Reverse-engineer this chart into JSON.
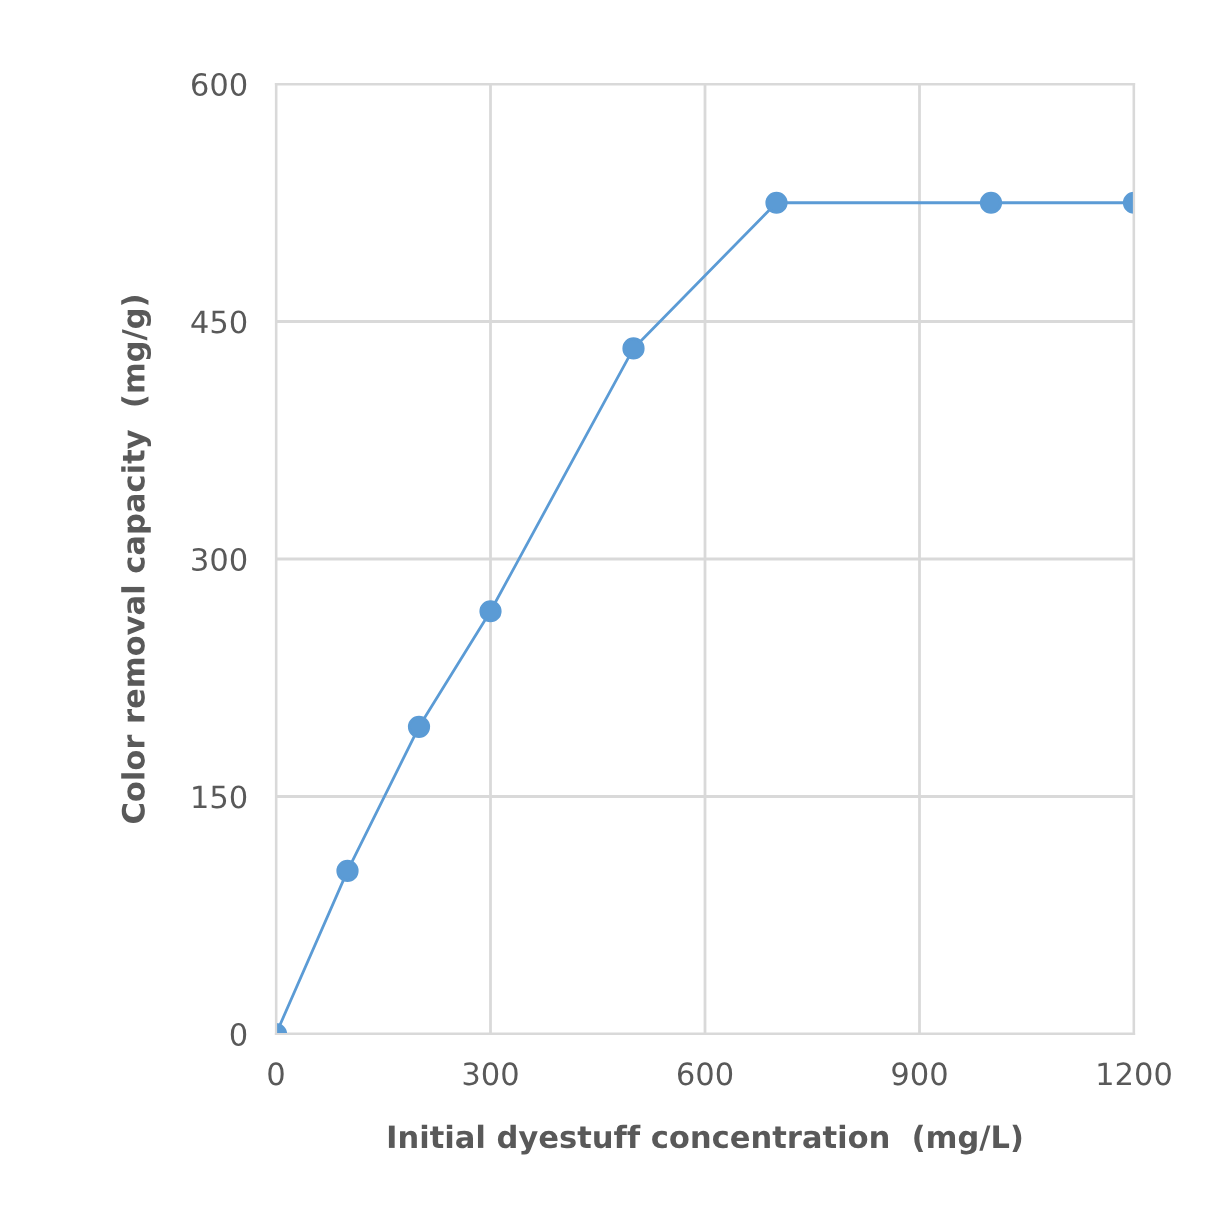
{
  "chart_data": {
    "type": "line",
    "xlabel": "Initial dyestuff concentration  (mg/L)",
    "ylabel": "Color removal capacity  (mg/g)",
    "x": [
      0,
      100,
      200,
      300,
      500,
      700,
      1000,
      1200
    ],
    "series": [
      {
        "color": "#5b9bd5",
        "values": [
          0,
          103,
          194,
          267,
          433,
          525,
          525,
          525
        ]
      }
    ],
    "xlim": [
      0,
      1200
    ],
    "xticks": [
      0,
      300,
      600,
      900,
      1200
    ],
    "ylim": [
      0,
      600
    ],
    "yticks": [
      0,
      150,
      300,
      450,
      600
    ],
    "grid": true,
    "marker": "circle",
    "line_style": "solid"
  }
}
